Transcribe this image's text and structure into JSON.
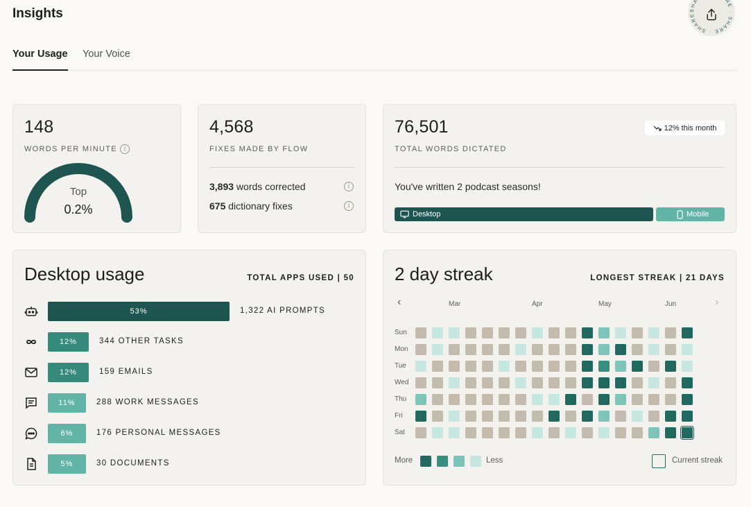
{
  "header": {
    "title": "Insights",
    "share_label": "SHARE · SHARE · SHARE ·"
  },
  "tabs": [
    {
      "label": "Your Usage",
      "active": true
    },
    {
      "label": "Your Voice",
      "active": false
    }
  ],
  "wpm": {
    "value": "148",
    "caption": "WORDS PER MINUTE",
    "gauge_top": "Top",
    "gauge_pct": "0.2%",
    "gauge_fraction": 0.998
  },
  "fixes": {
    "value": "4,568",
    "caption": "FIXES MADE BY FLOW",
    "rows": [
      {
        "count": "3,893",
        "text": " words corrected"
      },
      {
        "count": "675",
        "text": " dictionary fixes"
      }
    ]
  },
  "dictated": {
    "value": "76,501",
    "caption": "TOTAL WORDS DICTATED",
    "trend": "12% this month",
    "message": "You've written 2 podcast seasons!",
    "desktop_label": "Desktop",
    "mobile_label": "Mobile",
    "desktop_fraction": 0.79
  },
  "desktop_usage": {
    "title": "Desktop usage",
    "meta": "TOTAL APPS USED | 50",
    "apps": [
      {
        "icon": "robot-icon",
        "pct": "53%",
        "value": 53,
        "label": "1,322 AI PROMPTS",
        "color": "#1e5550"
      },
      {
        "icon": "infinity-icon",
        "pct": "12%",
        "value": 12,
        "label": "344 OTHER TASKS",
        "color": "#358a7c"
      },
      {
        "icon": "mail-icon",
        "pct": "12%",
        "value": 12,
        "label": "159 EMAILS",
        "color": "#358a7c"
      },
      {
        "icon": "message-lines-icon",
        "pct": "11%",
        "value": 11,
        "label": "288 WORK MESSAGES",
        "color": "#62b5a6"
      },
      {
        "icon": "chat-bubble-icon",
        "pct": "6%",
        "value": 6,
        "label": "176 PERSONAL MESSAGES",
        "color": "#62b5a6"
      },
      {
        "icon": "document-icon",
        "pct": "5%",
        "value": 5,
        "label": "30 DOCUMENTS",
        "color": "#62b5a6"
      }
    ]
  },
  "streak": {
    "title": "2 day streak",
    "meta": "LONGEST STREAK | 21 DAYS",
    "months": [
      "Mar",
      "Apr",
      "May",
      "Jun"
    ],
    "days": [
      "Sun",
      "Mon",
      "Tue",
      "Wed",
      "Thu",
      "Fri",
      "Sat"
    ],
    "legend_more": "More",
    "legend_less": "Less",
    "legend_current": "Current streak",
    "colors": {
      "0": "#e9e6dd",
      "1": "#c3bbae",
      "2": "#c6e6e2",
      "3": "#7cc3b9",
      "4": "#3b8d80",
      "5": "#216a62"
    },
    "grid": [
      "12211112115321215",
      "12111121115351212",
      "21111211115435152",
      "11211121115551215",
      "31111112251531115",
      "51211111515312155",
      "12211112121211355"
    ],
    "current_cells": [
      [
        0,
        17
      ],
      [
        6,
        16
      ]
    ]
  }
}
